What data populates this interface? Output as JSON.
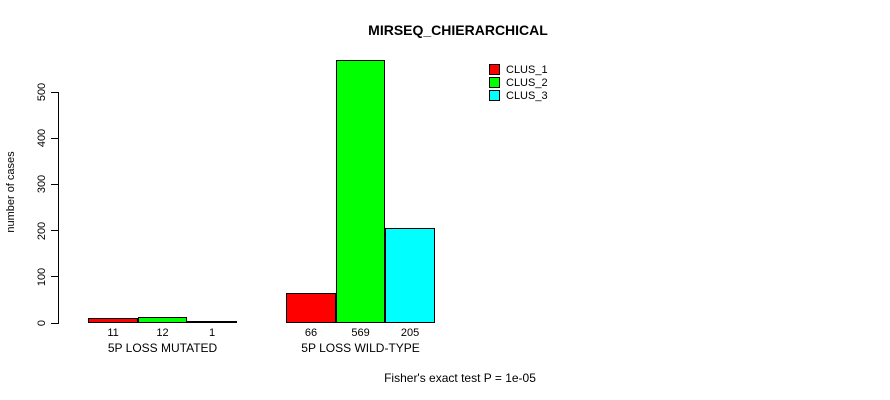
{
  "chart_data": {
    "type": "bar",
    "title": "MIRSEQ_CHIERARCHICAL",
    "ylabel": "number of cases",
    "xlabel": "",
    "categories": [
      "5P LOSS MUTATED",
      "5P LOSS WILD-TYPE"
    ],
    "series": [
      {
        "name": "CLUS_1",
        "color": "#ff0000",
        "values": [
          11,
          66
        ]
      },
      {
        "name": "CLUS_2",
        "color": "#00ff00",
        "values": [
          12,
          569
        ]
      },
      {
        "name": "CLUS_3",
        "color": "#00ffff",
        "values": [
          1,
          205
        ]
      }
    ],
    "bar_value_labels": [
      [
        11,
        12,
        1
      ],
      [
        66,
        569,
        205
      ]
    ],
    "y_ticks": [
      0,
      100,
      200,
      300,
      400,
      500
    ],
    "ylim": [
      0,
      500
    ],
    "grid": false,
    "legend": {
      "position": "top-right",
      "entries": [
        "CLUS_1",
        "CLUS_2",
        "CLUS_3"
      ]
    },
    "caption": "Fisher's exact test P = 1e-05",
    "colors": {
      "background": "#ffffff",
      "axis": "#000000",
      "text": "#000000"
    }
  }
}
